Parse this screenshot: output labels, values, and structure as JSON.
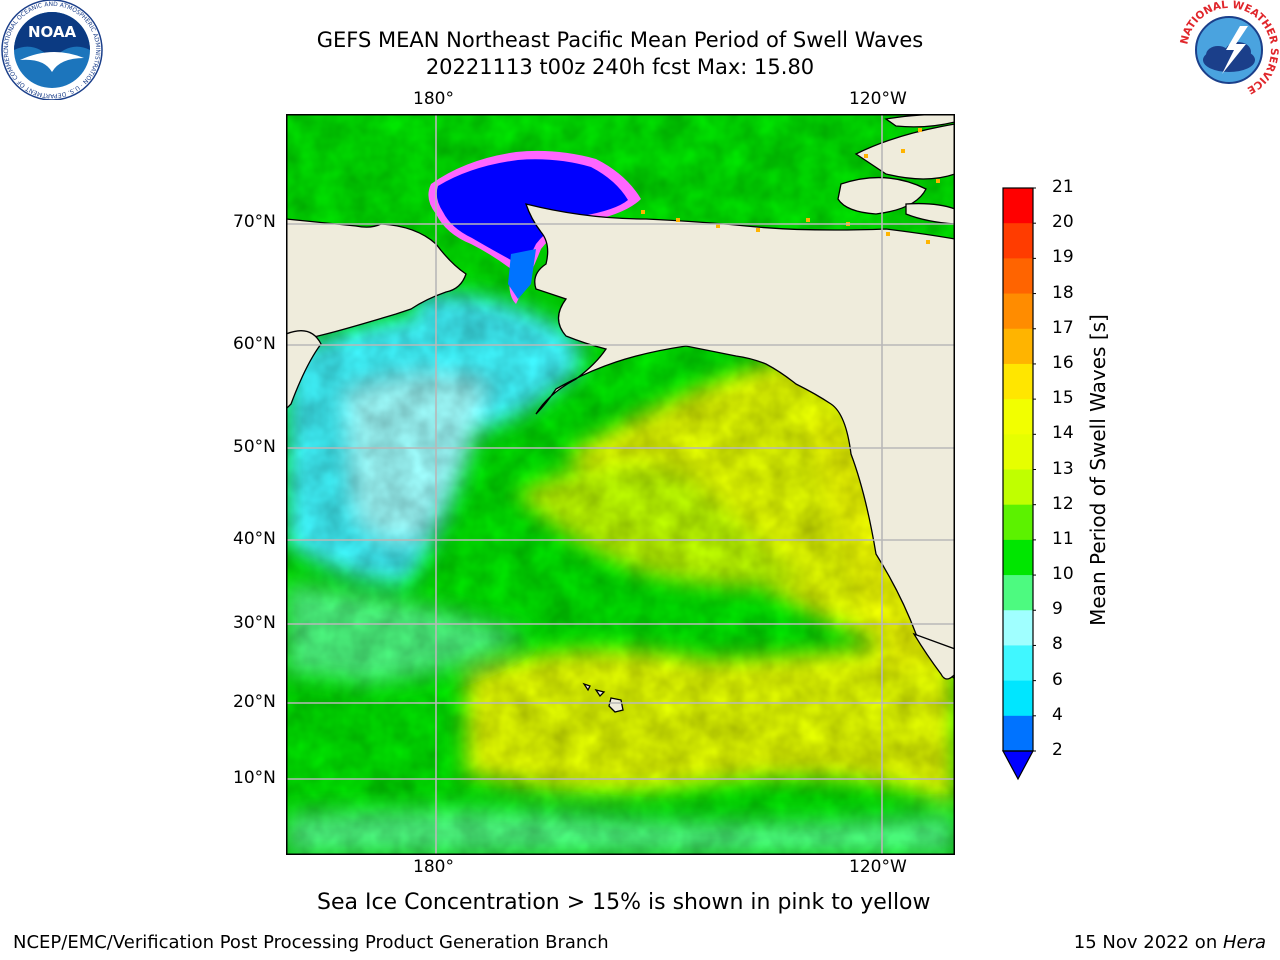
{
  "header": {
    "title_line1": "GEFS MEAN Northeast Pacific Mean Period of Swell Waves",
    "title_line2": "20221113 t00z 240h fcst   Max: 15.80"
  },
  "logos": {
    "noaa_text": "NOAA",
    "noaa_ring_text": "NATIONAL OCEANIC AND ATMOSPHERIC ADMINISTRATION · U.S. DEPARTMENT OF COMMERCE",
    "nws_ring_text": "NATIONAL WEATHER SERVICE"
  },
  "map": {
    "lon_labels_top": [
      "180°",
      "120°W"
    ],
    "lon_labels_bottom": [
      "180°",
      "120°W"
    ],
    "lat_labels": [
      "70°N",
      "60°N",
      "50°N",
      "40°N",
      "30°N",
      "20°N",
      "10°N"
    ],
    "colors": {
      "land": "#efecdc",
      "sea_ice": "#0000ff"
    }
  },
  "colorbar": {
    "title": "Mean Period of Swell Waves [s]",
    "levels": [
      "2",
      "4",
      "6",
      "8",
      "9",
      "10",
      "11",
      "12",
      "13",
      "14",
      "15",
      "16",
      "17",
      "18",
      "19",
      "20",
      "21"
    ],
    "colors": [
      "#0000ff",
      "#0073ff",
      "#00e6ff",
      "#40f7ff",
      "#a0ffff",
      "#4dfa80",
      "#00e600",
      "#5cf200",
      "#c0ff00",
      "#e6ff00",
      "#f2ff00",
      "#ffe600",
      "#ffb400",
      "#ff8c00",
      "#ff6400",
      "#ff3c00",
      "#ff0000"
    ]
  },
  "note": "Sea Ice Concentration > 15% is shown in pink to yellow",
  "footer": {
    "left": "NCEP/EMC/Verification Post Processing Product Generation Branch",
    "right_date": "15 Nov 2022 on ",
    "right_host": "Hera"
  }
}
